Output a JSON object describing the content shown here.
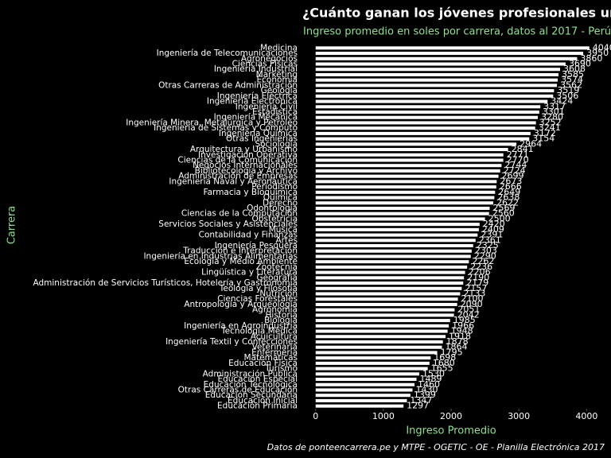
{
  "chart_data": {
    "type": "barh",
    "title": "¿Cuánto ganan los jóvenes profesionales un",
    "subtitle": "Ingreso promedio en soles por carrera, datos al 2017 - Perú",
    "x_label": "Ingreso Promedio",
    "y_label": "Carrera",
    "caption": "Datos de ponteencarrera.pe y MTPE - OGETIC - OE - Planilla Electrónica 2017",
    "color": "#ffffff",
    "categories": [
      "Medicina",
      "Ingeniería de Telecomunicaciones",
      "Agronegocios",
      "Ciencias Físicas",
      "Ingeniería Industrial",
      "Marketing",
      "Economía",
      "Otras Carreras de Administración",
      "Geología",
      "Ingeniería Eléctrica",
      "Ingeniería Electrónica",
      "Ingeniería Civil",
      "Estadística",
      "Ingeniería Mecánica",
      "Ingeniería Minera, Metalúrgica y Petróleo",
      "Ingeniería de Sistemas y Cómputo",
      "Ingeniería Química",
      "Otras Ingenierías",
      "Sociología",
      "Arquitectura y Urbanismo",
      "Investigación Operativa",
      "Ciencias de la Comunicación",
      "Negocios Internacionales",
      "Bibliotecología y Archivo",
      "Administración de Empresas",
      "Ingeniería Naval y Aeronáutica",
      "Periodismo",
      "Farmacia y Bioquímica",
      "Química",
      "Derecho",
      "Odontología",
      "Ciencias de la Computación",
      "Obstetricia",
      "Servicios Sociales y Asistenciales",
      "Música",
      "Contabilidad y Finanzas",
      "Artes",
      "Ingeniería Pesquera",
      "Traducción e Interpretación",
      "Ingeniería en Industrias Alimentarias",
      "Ecología y Medio Ambiente",
      "Zootecnia",
      "Lingüística y Literatura",
      "Geografía",
      "Administración de Servicios Turísticos, Hotelería y Gastronomía",
      "Teología y Filosofía",
      "Nutrición",
      "Ciencias Forestales",
      "Antropología y Arqueología",
      "Agronomía",
      "Historia",
      "Biología",
      "Ingeniería en Agroindustria",
      "Tecnología Médica",
      "Acuicultura",
      "Ingeniería Textil y Confecciones",
      "Veterinaria",
      "Enfermería",
      "Matemáticas",
      "Educación Física",
      "Turismo",
      "Administración Pública",
      "Educación Especial",
      "Educación Tecnológica",
      "Otras Carreras de Educación",
      "Educación Secundaria",
      "Educación Inicial",
      "Educación Primaria"
    ],
    "values": [
      4040,
      3950,
      3860,
      3690,
      3608,
      3585,
      3574,
      3562,
      3519,
      3506,
      3424,
      3317,
      3301,
      3280,
      3252,
      3241,
      3172,
      3154,
      2964,
      2841,
      2771,
      2770,
      2744,
      2724,
      2699,
      2673,
      2666,
      2649,
      2638,
      2622,
      2569,
      2560,
      2500,
      2420,
      2409,
      2391,
      2361,
      2325,
      2303,
      2290,
      2262,
      2236,
      2206,
      2190,
      2179,
      2157,
      2133,
      2100,
      2090,
      2051,
      2042,
      1985,
      1966,
      1948,
      1918,
      1878,
      1864,
      1795,
      1698,
      1680,
      1655,
      1530,
      1489,
      1460,
      1430,
      1399,
      1347,
      1297
    ],
    "xlim": [
      -220,
      4360
    ],
    "xticks": [
      0,
      1000,
      2000,
      3000,
      4000
    ]
  }
}
